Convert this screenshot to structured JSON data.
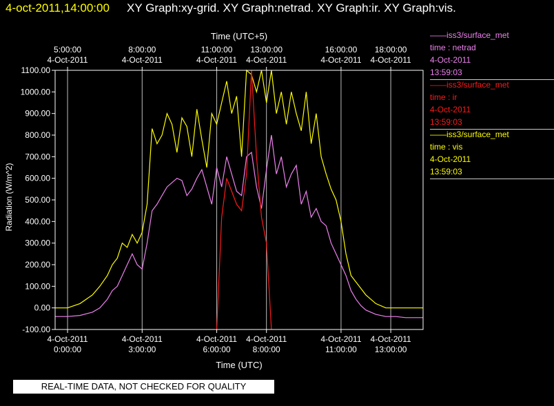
{
  "header": {
    "timestamp": "4-oct-2011,14:00:00",
    "title": "XY Graph:xy-grid.  XY Graph:netrad.  XY Graph:ir.  XY Graph:vis."
  },
  "legend": [
    {
      "source": "——iss3/surface_met",
      "variable": "time : netrad",
      "date": "4-Oct-2011",
      "time": "13:59:03",
      "color": "#ee82ee"
    },
    {
      "source": "——iss3/surface_met",
      "variable": "time : ir",
      "date": "4-Oct-2011",
      "time": "13:59:03",
      "color": "#ff1a1a"
    },
    {
      "source": "——iss3/surface_met",
      "variable": "time : vis",
      "date": "4-Oct-2011",
      "time": "13:59:03",
      "color": "#ffff00"
    }
  ],
  "footer": {
    "qc_banner": "REAL-TIME DATA, NOT CHECKED FOR QUALITY"
  },
  "chart_data": {
    "type": "line",
    "ylabel": "Radiation (W/m^2)",
    "xlabel_bottom": "Time (UTC)",
    "xlabel_top": "Time (UTC+5)",
    "ylim": [
      -100,
      1100
    ],
    "xlim_hours_utc": [
      -0.5,
      14.3
    ],
    "yticks": [
      {
        "value": -100,
        "label": "-100.00"
      },
      {
        "value": 0,
        "label": "0.00"
      },
      {
        "value": 100,
        "label": "100.00"
      },
      {
        "value": 200,
        "label": "200.00"
      },
      {
        "value": 300,
        "label": "300.00"
      },
      {
        "value": 400,
        "label": "400.00"
      },
      {
        "value": 500,
        "label": "500.00"
      },
      {
        "value": 600,
        "label": "600.00"
      },
      {
        "value": 700,
        "label": "700.00"
      },
      {
        "value": 800,
        "label": "800.00"
      },
      {
        "value": 900,
        "label": "900.00"
      },
      {
        "value": 1000,
        "label": "1000.00"
      },
      {
        "value": 1100,
        "label": "1100.00"
      }
    ],
    "xticks_bottom": [
      {
        "hour": 0,
        "date": "4-Oct-2011",
        "time": "0:00:00"
      },
      {
        "hour": 3,
        "date": "4-Oct-2011",
        "time": "3:00:00"
      },
      {
        "hour": 6,
        "date": "4-Oct-2011",
        "time": "6:00:00"
      },
      {
        "hour": 8,
        "date": "4-Oct-2011",
        "time": "8:00:00"
      },
      {
        "hour": 11,
        "date": "4-Oct-2011",
        "time": "11:00:00"
      },
      {
        "hour": 13,
        "date": "4-Oct-2011",
        "time": "13:00:00"
      }
    ],
    "xticks_top": [
      {
        "hour": 0,
        "date": "4-Oct-2011",
        "time": "5:00:00"
      },
      {
        "hour": 3,
        "date": "4-Oct-2011",
        "time": "8:00:00"
      },
      {
        "hour": 6,
        "date": "4-Oct-2011",
        "time": "11:00:00"
      },
      {
        "hour": 8,
        "date": "4-Oct-2011",
        "time": "13:00:00"
      },
      {
        "hour": 11,
        "date": "4-Oct-2011",
        "time": "16:00:00"
      },
      {
        "hour": 13,
        "date": "4-Oct-2011",
        "time": "18:00:00"
      }
    ],
    "grid": true,
    "series": [
      {
        "name": "time : vis",
        "color": "#ffff00",
        "x": [
          -0.5,
          0,
          0.5,
          1,
          1.3,
          1.6,
          1.8,
          2.0,
          2.2,
          2.4,
          2.6,
          2.8,
          3.0,
          3.2,
          3.4,
          3.6,
          3.8,
          4.0,
          4.2,
          4.4,
          4.6,
          4.8,
          5.0,
          5.2,
          5.4,
          5.6,
          5.8,
          6.0,
          6.2,
          6.4,
          6.6,
          6.8,
          7.0,
          7.2,
          7.4,
          7.6,
          7.8,
          8.0,
          8.2,
          8.4,
          8.6,
          8.8,
          9.0,
          9.2,
          9.4,
          9.6,
          9.8,
          10.0,
          10.2,
          10.4,
          10.6,
          10.8,
          11.0,
          11.2,
          11.4,
          11.6,
          11.8,
          12.0,
          12.4,
          12.8,
          13.2,
          13.6,
          14.0,
          14.3
        ],
        "y": [
          0,
          0,
          20,
          60,
          100,
          150,
          200,
          230,
          300,
          280,
          340,
          300,
          350,
          480,
          830,
          760,
          800,
          900,
          850,
          720,
          880,
          840,
          700,
          920,
          780,
          650,
          900,
          850,
          950,
          1050,
          900,
          980,
          700,
          1100,
          1080,
          1000,
          1100,
          950,
          1100,
          900,
          1000,
          850,
          1000,
          900,
          820,
          1000,
          760,
          900,
          700,
          620,
          550,
          500,
          400,
          250,
          150,
          120,
          90,
          60,
          20,
          0,
          0,
          0,
          0,
          0
        ]
      },
      {
        "name": "time : netrad",
        "color": "#ee82ee",
        "x": [
          -0.5,
          0,
          0.5,
          1,
          1.3,
          1.6,
          1.8,
          2.0,
          2.2,
          2.4,
          2.6,
          2.8,
          3.0,
          3.2,
          3.4,
          3.6,
          3.8,
          4.0,
          4.2,
          4.4,
          4.6,
          4.8,
          5.0,
          5.2,
          5.4,
          5.6,
          5.8,
          6.0,
          6.2,
          6.4,
          6.6,
          6.8,
          7.0,
          7.2,
          7.4,
          7.6,
          7.8,
          8.0,
          8.2,
          8.4,
          8.6,
          8.8,
          9.0,
          9.2,
          9.4,
          9.6,
          9.8,
          10.0,
          10.2,
          10.4,
          10.6,
          10.8,
          11.0,
          11.2,
          11.4,
          11.6,
          11.8,
          12.0,
          12.4,
          12.8,
          13.2,
          13.6,
          14.0,
          14.3
        ],
        "y": [
          -40,
          -40,
          -35,
          -20,
          0,
          40,
          80,
          100,
          150,
          200,
          250,
          200,
          180,
          300,
          450,
          480,
          520,
          560,
          580,
          600,
          590,
          520,
          550,
          600,
          640,
          560,
          480,
          650,
          560,
          700,
          620,
          540,
          520,
          700,
          720,
          560,
          460,
          640,
          800,
          620,
          700,
          560,
          620,
          660,
          480,
          540,
          420,
          460,
          400,
          380,
          300,
          250,
          200,
          150,
          80,
          40,
          10,
          -10,
          -30,
          -40,
          -40,
          -45,
          -45,
          -45
        ]
      },
      {
        "name": "time : ir",
        "color": "#ff1a1a",
        "x": [
          6.0,
          6.2,
          6.4,
          6.6,
          6.8,
          7.0,
          7.2,
          7.4,
          7.6,
          7.8,
          8.0,
          8.2
        ],
        "y": [
          -100,
          420,
          600,
          540,
          480,
          450,
          620,
          1100,
          700,
          420,
          300,
          -100
        ]
      }
    ]
  }
}
